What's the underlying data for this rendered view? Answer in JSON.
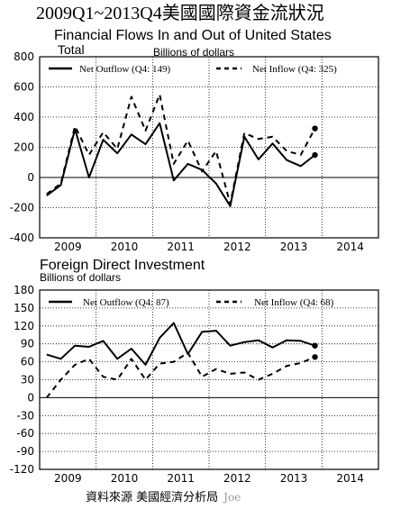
{
  "page_title": "2009Q1~2013Q4美國國際資金流狀況",
  "source_note": "資料來源 美國經濟分析局",
  "author": "Joe",
  "colors": {
    "line": "#000000",
    "background": "#ffffff"
  },
  "chart_data": [
    {
      "type": "line",
      "title": "Financial Flows In and Out of United States",
      "subtitle": "Total",
      "ylabel": "Billions of dollars",
      "xlabel": "",
      "ylim": [
        -400,
        800
      ],
      "yticks": [
        -400,
        -200,
        0,
        200,
        400,
        600,
        800
      ],
      "xticks": [
        "2009",
        "2010",
        "2011",
        "2012",
        "2013",
        "2014"
      ],
      "x": [
        "2009Q1",
        "2009Q2",
        "2009Q3",
        "2009Q4",
        "2010Q1",
        "2010Q2",
        "2010Q3",
        "2010Q4",
        "2011Q1",
        "2011Q2",
        "2011Q3",
        "2011Q4",
        "2012Q1",
        "2012Q2",
        "2012Q3",
        "2012Q4",
        "2013Q1",
        "2013Q2",
        "2013Q3",
        "2013Q4"
      ],
      "legend_position": "top",
      "grid": true,
      "series": [
        {
          "name": "Net Outflow (Q4: 149)",
          "style": "solid",
          "values": [
            -120,
            -50,
            320,
            0,
            250,
            160,
            285,
            220,
            360,
            -20,
            90,
            50,
            -40,
            -190,
            270,
            120,
            225,
            115,
            75,
            149
          ]
        },
        {
          "name": "Net Inflow (Q4: 325)",
          "style": "dashed",
          "values": [
            -110,
            -40,
            340,
            150,
            300,
            190,
            535,
            310,
            550,
            90,
            245,
            40,
            175,
            -175,
            295,
            255,
            270,
            175,
            150,
            325
          ]
        }
      ]
    },
    {
      "type": "line",
      "title": "Foreign Direct Investment",
      "ylabel": "Billions of dollars",
      "xlabel": "",
      "ylim": [
        -120,
        180
      ],
      "yticks": [
        -120,
        -90,
        -60,
        -30,
        0,
        30,
        60,
        90,
        120,
        150,
        180
      ],
      "xticks": [
        "2009",
        "2010",
        "2011",
        "2012",
        "2013",
        "2014"
      ],
      "x": [
        "2009Q1",
        "2009Q2",
        "2009Q3",
        "2009Q4",
        "2010Q1",
        "2010Q2",
        "2010Q3",
        "2010Q4",
        "2011Q1",
        "2011Q2",
        "2011Q3",
        "2011Q4",
        "2012Q1",
        "2012Q2",
        "2012Q3",
        "2012Q4",
        "2013Q1",
        "2013Q2",
        "2013Q3",
        "2013Q4"
      ],
      "legend_position": "top",
      "grid": true,
      "series": [
        {
          "name": "Net Outflow (Q4: 87)",
          "style": "solid",
          "values": [
            72,
            65,
            87,
            85,
            95,
            65,
            82,
            55,
            100,
            125,
            73,
            110,
            112,
            87,
            93,
            96,
            84,
            96,
            95,
            87
          ]
        },
        {
          "name": "Net Inflow (Q4: 68)",
          "style": "dashed",
          "values": [
            0,
            30,
            55,
            65,
            35,
            30,
            65,
            30,
            57,
            60,
            75,
            35,
            48,
            40,
            42,
            30,
            40,
            53,
            58,
            68
          ]
        }
      ]
    }
  ]
}
